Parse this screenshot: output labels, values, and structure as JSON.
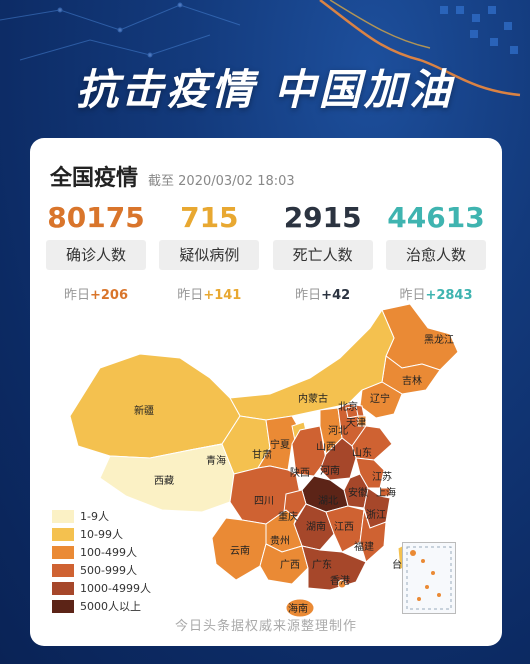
{
  "banner": {
    "title": "抗击疫情 中国加油"
  },
  "card": {
    "title": "全国疫情",
    "timestamp": "截至 2020/03/02 18:03",
    "stats": [
      {
        "value": "80175",
        "label": "确诊人数",
        "delta_prefix": "昨日",
        "delta": "+206",
        "color": "#d9752b"
      },
      {
        "value": "715",
        "label": "疑似病例",
        "delta_prefix": "昨日",
        "delta": "+141",
        "color": "#e8a831"
      },
      {
        "value": "2915",
        "label": "死亡人数",
        "delta_prefix": "昨日",
        "delta": "+42",
        "color": "#2b3340"
      },
      {
        "value": "44613",
        "label": "治愈人数",
        "delta_prefix": "昨日",
        "delta": "+2843",
        "color": "#3fb4b0"
      }
    ]
  },
  "map": {
    "provinces": [
      "黑龙江",
      "吉林",
      "辽宁",
      "内蒙古",
      "新疆",
      "西藏",
      "青海",
      "甘肃",
      "宁夏",
      "陕西",
      "山西",
      "河北",
      "北京",
      "天津",
      "山东",
      "河南",
      "江苏",
      "安徽",
      "上海",
      "湖北",
      "浙江",
      "四川",
      "重庆",
      "湖南",
      "江西",
      "福建",
      "贵州",
      "云南",
      "广西",
      "广东",
      "香港",
      "台湾",
      "海南"
    ]
  },
  "legend": [
    {
      "label": "1-9人",
      "color": "#fbf1c5"
    },
    {
      "label": "10-99人",
      "color": "#f4c14f"
    },
    {
      "label": "100-499人",
      "color": "#ea8a35"
    },
    {
      "label": "500-999人",
      "color": "#cf6232"
    },
    {
      "label": "1000-4999人",
      "color": "#a6472a"
    },
    {
      "label": "5000人以上",
      "color": "#5c2417"
    }
  ],
  "footer": "今日头条据权威来源整理制作"
}
